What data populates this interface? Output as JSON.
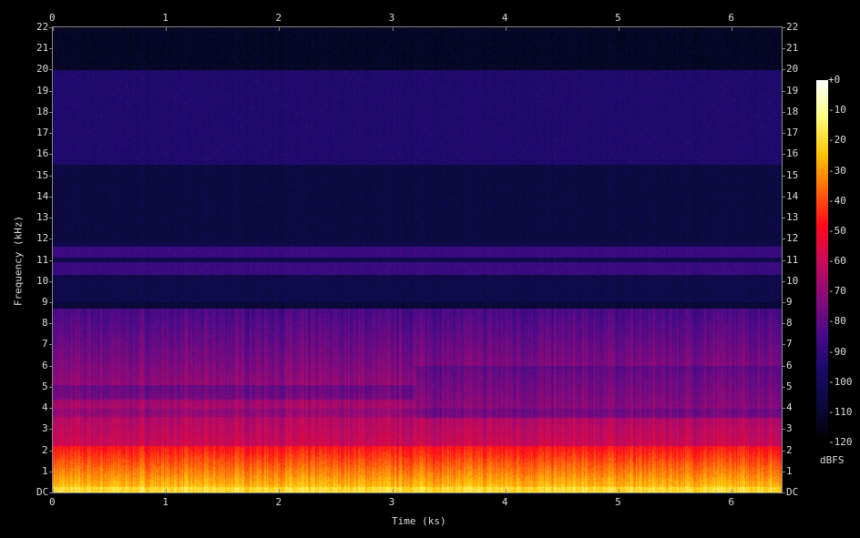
{
  "chart_data": {
    "type": "heatmap",
    "title": "",
    "xlabel": "Time (ks)",
    "ylabel": "Frequency (kHz)",
    "xlim": [
      0,
      6.44
    ],
    "ylim": [
      0,
      22
    ],
    "x_ticks": [
      "0",
      "1",
      "2",
      "3",
      "4",
      "5",
      "6"
    ],
    "y_ticks": [
      "DC",
      "1",
      "2",
      "3",
      "4",
      "5",
      "6",
      "7",
      "8",
      "9",
      "10",
      "11",
      "12",
      "13",
      "14",
      "15",
      "16",
      "17",
      "18",
      "19",
      "20",
      "21",
      "22"
    ],
    "colorbar": {
      "label": "dBFS",
      "range": [
        -120,
        0
      ],
      "ticks": [
        "+0",
        "-10",
        "-20",
        "-30",
        "-40",
        "-50",
        "-60",
        "-70",
        "-80",
        "-90",
        "-100",
        "-110",
        "-120"
      ],
      "palette": [
        "#000000",
        "#0a0a3a",
        "#1a0a6a",
        "#4a0a8a",
        "#8a0a7a",
        "#c80a5a",
        "#ff0a1a",
        "#ff6a0a",
        "#ffc80a",
        "#ffff80",
        "#ffffff"
      ]
    },
    "levels_dbfs": [
      {
        "band_khz": [
          20,
          22
        ],
        "level": -112
      },
      {
        "band_khz": [
          15.5,
          20
        ],
        "level": -95
      },
      {
        "band_khz": [
          11.8,
          15.5
        ],
        "level": -106
      },
      {
        "band_khz": [
          9,
          11.8
        ],
        "level": -98
      },
      {
        "band_khz": [
          8.7,
          9
        ],
        "level": -108
      },
      {
        "band_khz": [
          5,
          8.7
        ],
        "level": -80
      },
      {
        "band_khz": [
          2,
          5
        ],
        "level": -62
      },
      {
        "band_khz": [
          0.3,
          2
        ],
        "level": -40
      },
      {
        "band_khz": [
          0,
          0.3
        ],
        "level": -22
      }
    ]
  }
}
